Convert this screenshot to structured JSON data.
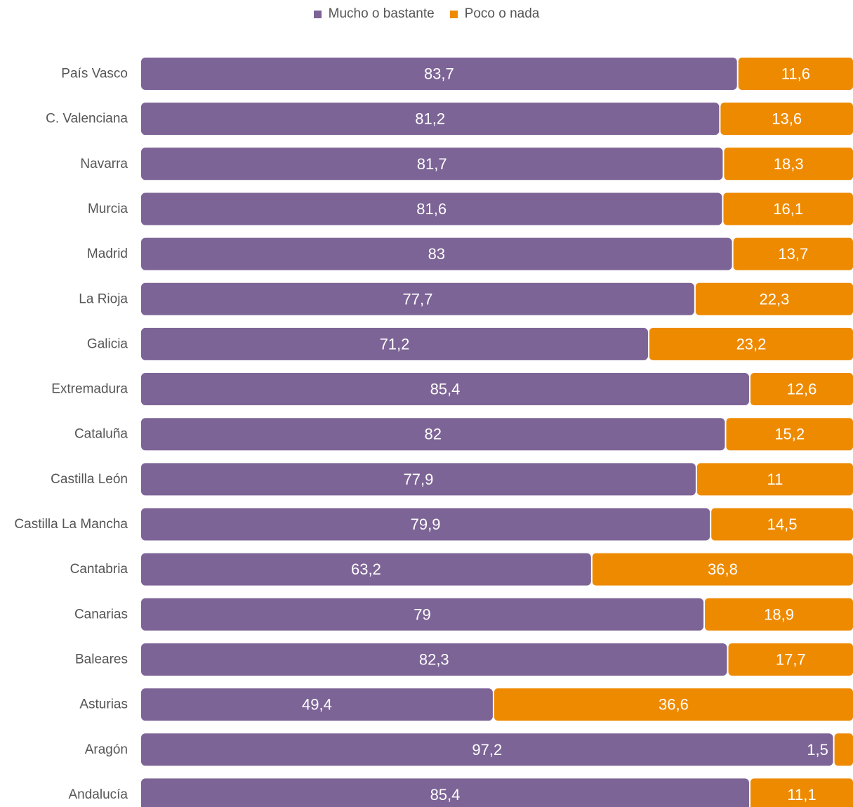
{
  "chart_data": {
    "type": "bar",
    "orientation": "horizontal",
    "stacked": true,
    "legend_position": "top-center",
    "grid": false,
    "categories": [
      "País Vasco",
      "C. Valenciana",
      "Navarra",
      "Murcia",
      "Madrid",
      "La Rioja",
      "Galicia",
      "Extremadura",
      "Cataluña",
      "Castilla León",
      "Castilla La Mancha",
      "Cantabria",
      "Canarias",
      "Baleares",
      "Asturias",
      "Aragón",
      "Andalucía"
    ],
    "series": [
      {
        "name": "Mucho o bastante",
        "color": "#7d6496",
        "values": [
          83.7,
          81.2,
          81.7,
          81.6,
          83,
          77.7,
          71.2,
          85.4,
          82,
          77.9,
          79.9,
          63.2,
          79,
          82.3,
          49.4,
          97.2,
          85.4
        ],
        "labels": [
          "83,7",
          "81,2",
          "81,7",
          "81,6",
          "83",
          "77,7",
          "71,2",
          "85,4",
          "82",
          "77,9",
          "79,9",
          "63,2",
          "79",
          "82,3",
          "49,4",
          "97,2",
          "85,4"
        ]
      },
      {
        "name": "Poco o nada",
        "color": "#ee8a00",
        "values": [
          11.6,
          13.6,
          18.3,
          16.1,
          13.7,
          22.3,
          23.2,
          12.6,
          15.2,
          11,
          14.5,
          36.8,
          18.9,
          17.7,
          36.6,
          1.5,
          11.1
        ],
        "labels": [
          "11,6",
          "13,6",
          "18,3",
          "16,1",
          "13,7",
          "22,3",
          "23,2",
          "12,6",
          "15,2",
          "11",
          "14,5",
          "36,8",
          "18,9",
          "17,7",
          "36,6",
          "1,5",
          "11,1"
        ]
      }
    ]
  }
}
